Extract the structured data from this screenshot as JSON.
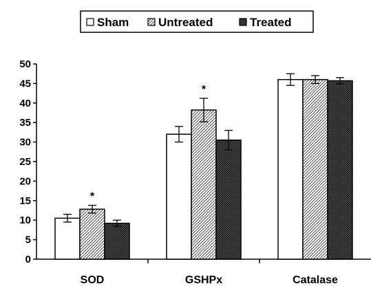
{
  "chart_data": {
    "type": "bar",
    "categories": [
      "SOD",
      "GSHPx",
      "Catalase"
    ],
    "series": [
      {
        "name": "Sham",
        "values": [
          10.5,
          32.0,
          46.0
        ],
        "errors": [
          1.0,
          2.0,
          1.5
        ],
        "pattern": "white"
      },
      {
        "name": "Untreated",
        "values": [
          12.8,
          38.2,
          46.0
        ],
        "errors": [
          1.0,
          3.0,
          1.0
        ],
        "pattern": "hatch"
      },
      {
        "name": "Treated",
        "values": [
          9.2,
          30.5,
          45.7
        ],
        "errors": [
          0.8,
          2.5,
          0.8
        ],
        "pattern": "dark"
      }
    ],
    "annotations": [
      {
        "text": "*",
        "category": "SOD",
        "series": "Untreated"
      },
      {
        "text": "*",
        "category": "GSHPx",
        "series": "Untreated"
      }
    ],
    "ylim": [
      0,
      50
    ],
    "yticks": [
      0,
      5,
      10,
      15,
      20,
      25,
      30,
      35,
      40,
      45,
      50
    ],
    "legend_position": "top-center",
    "grid": false
  }
}
